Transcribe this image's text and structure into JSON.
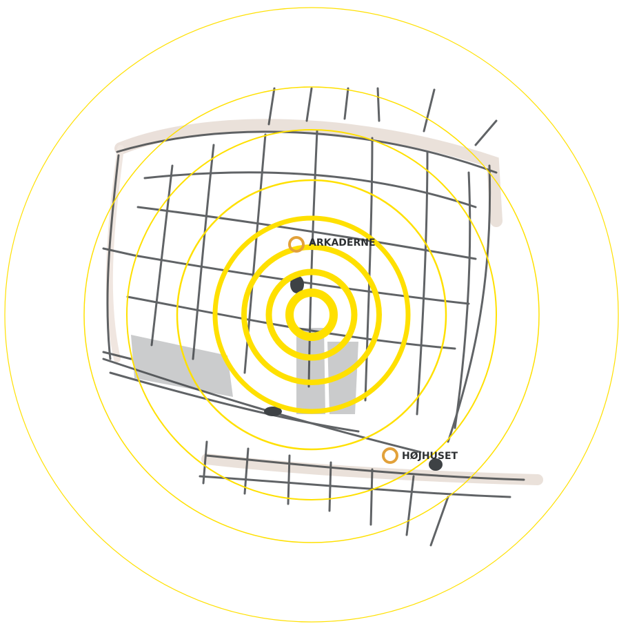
{
  "map": {
    "ring_color": "#FFE000",
    "marker_color": "#E2A13A",
    "label_color": "#2E3133",
    "sketch_color": "#3E4245",
    "road_color": "#D9C8BC"
  },
  "places": [
    {
      "name": "ARKADERNE",
      "icon": "ring-marker-icon"
    },
    {
      "name": "HØJHUSET",
      "icon": "ring-marker-icon"
    }
  ]
}
